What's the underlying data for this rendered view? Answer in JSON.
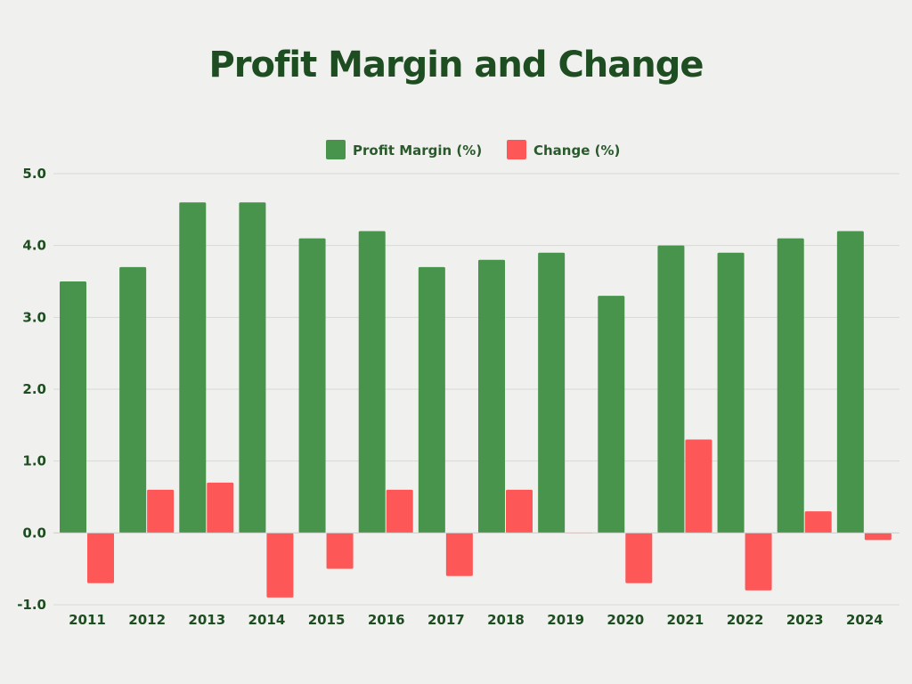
{
  "chart_data": {
    "type": "bar",
    "title": "Profit Margin and Change",
    "categories": [
      "2011",
      "2012",
      "2013",
      "2014",
      "2015",
      "2016",
      "2017",
      "2018",
      "2019",
      "2020",
      "2021",
      "2022",
      "2023",
      "2024"
    ],
    "series": [
      {
        "name": "Profit Margin (%)",
        "color": "#48944c",
        "values": [
          3.5,
          3.7,
          4.6,
          4.6,
          4.1,
          4.2,
          3.7,
          3.8,
          3.9,
          3.3,
          4.0,
          3.9,
          4.1,
          4.2
        ]
      },
      {
        "name": "Change (%)",
        "color": "#fd5757",
        "values": [
          -0.7,
          0.6,
          0.7,
          -0.9,
          -0.5,
          0.6,
          -0.6,
          0.6,
          0.0,
          -0.7,
          1.3,
          -0.8,
          0.3,
          -0.1
        ]
      }
    ],
    "yticks": [
      "5.0",
      "4.0",
      "3.0",
      "2.0",
      "1.0",
      "0.0",
      "-1.0"
    ],
    "ylim": [
      -1.0,
      5.0
    ],
    "legend_position": "top-center",
    "grid": true
  }
}
